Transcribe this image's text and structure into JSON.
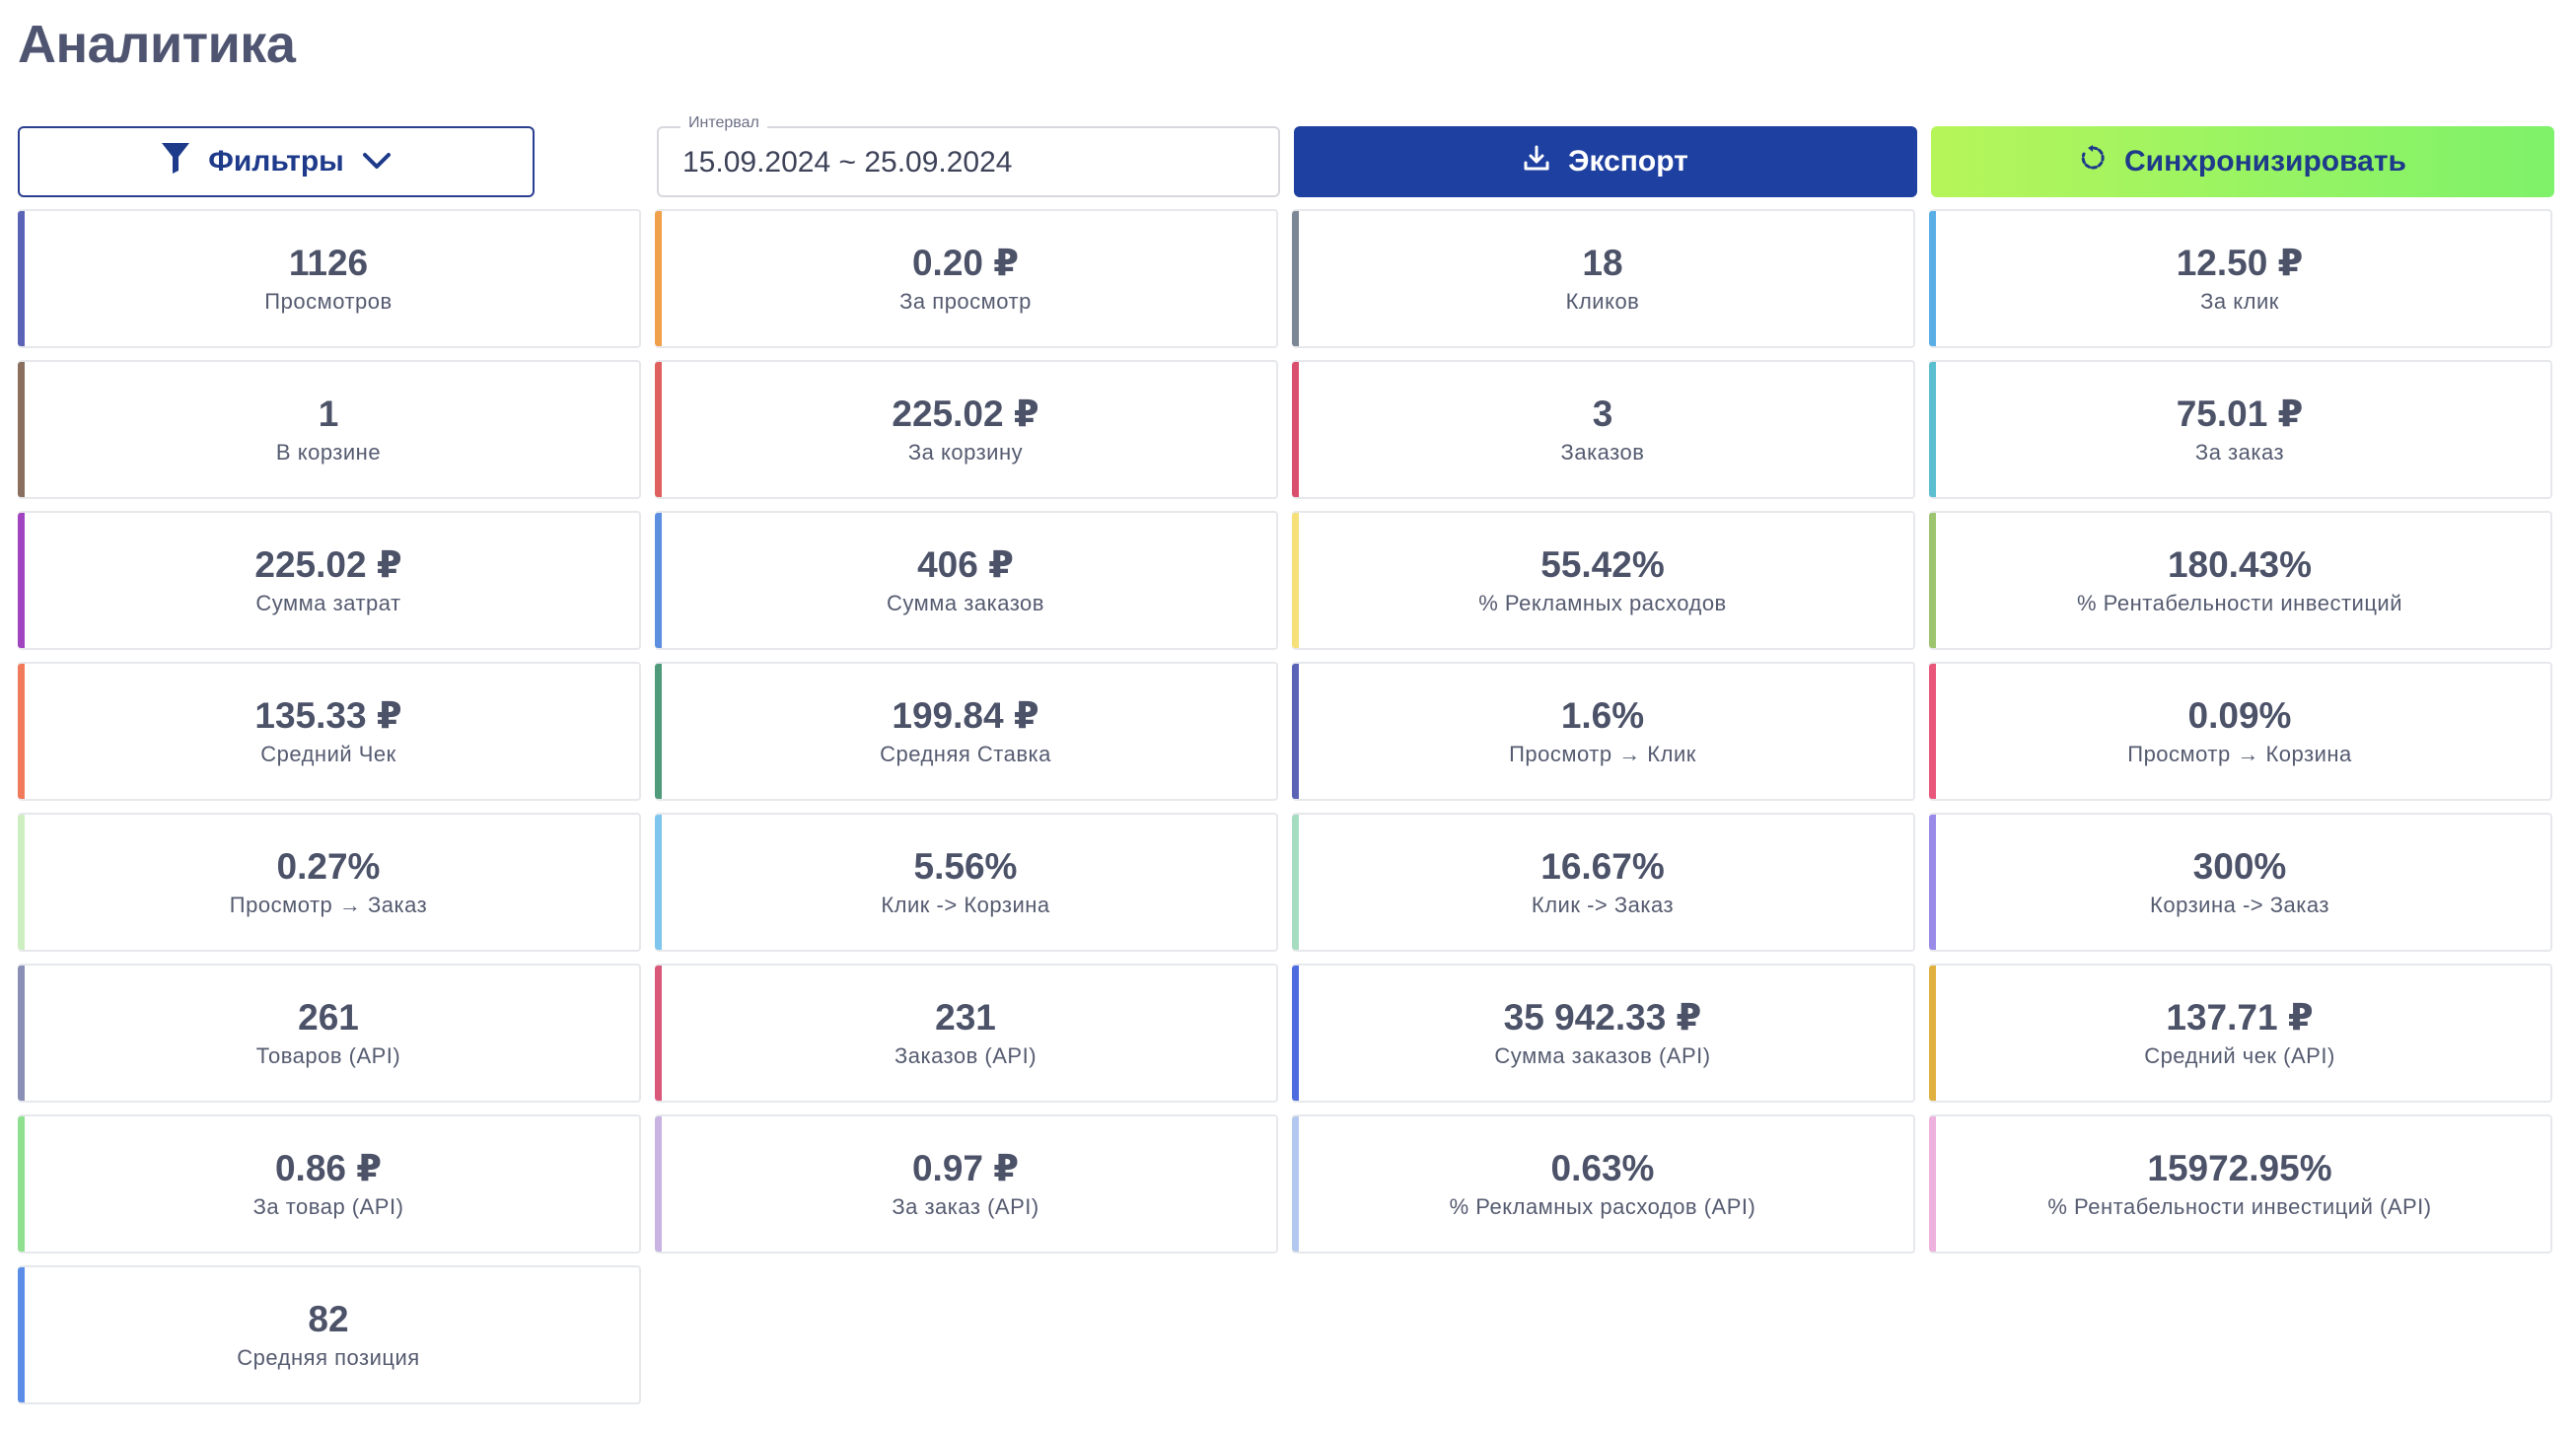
{
  "page": {
    "title": "Аналитика"
  },
  "toolbar": {
    "filters_label": "Фильтры",
    "interval_label": "Интервал",
    "interval_value": "15.09.2024 ~ 25.09.2024",
    "export_label": "Экспорт",
    "sync_label": "Синхронизировать"
  },
  "colors": {
    "primary": "#1e40a0",
    "sync_gradient_start": "#b6f55a",
    "sync_gradient_end": "#7ef26a"
  },
  "metrics": [
    {
      "value": "1126",
      "label": "Просмотров",
      "color": "#5b63b7"
    },
    {
      "value": "0.20 ₽",
      "label": "За просмотр",
      "color": "#f0a04b"
    },
    {
      "value": "18",
      "label": "Кликов",
      "color": "#7b8794"
    },
    {
      "value": "12.50 ₽",
      "label": "За клик",
      "color": "#5aaee6"
    },
    {
      "value": "1",
      "label": "В корзине",
      "color": "#8b6f5e"
    },
    {
      "value": "225.02 ₽",
      "label": "За корзину",
      "color": "#e06060"
    },
    {
      "value": "3",
      "label": "Заказов",
      "color": "#d94f6e"
    },
    {
      "value": "75.01 ₽",
      "label": "За заказ",
      "color": "#5bbfd0"
    },
    {
      "value": "225.02 ₽",
      "label": "Сумма затрат",
      "color": "#a044c0"
    },
    {
      "value": "406 ₽",
      "label": "Сумма заказов",
      "color": "#5c8fdf"
    },
    {
      "value": "55.42%",
      "label": "% Рекламных расходов",
      "color": "#f5e07a"
    },
    {
      "value": "180.43%",
      "label": "% Рентабельности инвестиций",
      "color": "#9dc46e"
    },
    {
      "value": "135.33 ₽",
      "label": "Средний Чек",
      "color": "#f07a5a"
    },
    {
      "value": "199.84 ₽",
      "label": "Средняя Ставка",
      "color": "#4f9a7a"
    },
    {
      "value": "1.6%",
      "label": "Просмотр → Клик",
      "color": "#5b63b7"
    },
    {
      "value": "0.09%",
      "label": "Просмотр → Корзина",
      "color": "#e8567a"
    },
    {
      "value": "0.27%",
      "label": "Просмотр → Заказ",
      "color": "#cdeec0"
    },
    {
      "value": "5.56%",
      "label": "Клик -> Корзина",
      "color": "#7ec6ee"
    },
    {
      "value": "16.67%",
      "label": "Клик -> Заказ",
      "color": "#a6dcc0"
    },
    {
      "value": "300%",
      "label": "Корзина -> Заказ",
      "color": "#9a8ae8"
    },
    {
      "value": "261",
      "label": "Товаров (API)",
      "color": "#8a8fb5"
    },
    {
      "value": "231",
      "label": "Заказов (API)",
      "color": "#d9587a"
    },
    {
      "value": "35 942.33 ₽",
      "label": "Сумма заказов (API)",
      "color": "#4f6be0"
    },
    {
      "value": "137.71 ₽",
      "label": "Средний чек (API)",
      "color": "#e0b040"
    },
    {
      "value": "0.86 ₽",
      "label": "За товар (API)",
      "color": "#8ee08e"
    },
    {
      "value": "0.97 ₽",
      "label": "За заказ (API)",
      "color": "#c9b3e3"
    },
    {
      "value": "0.63%",
      "label": "% Рекламных расходов (API)",
      "color": "#b3c8ee"
    },
    {
      "value": "15972.95%",
      "label": "% Рентабельности инвестиций (API)",
      "color": "#eeb0dc"
    },
    {
      "value": "82",
      "label": "Средняя позиция",
      "color": "#5a8de8"
    }
  ]
}
